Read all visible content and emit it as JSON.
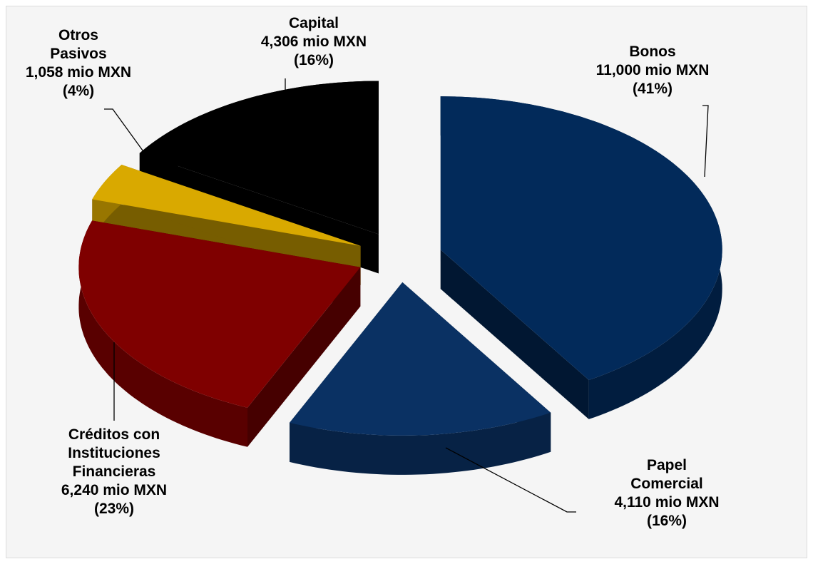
{
  "chart_data": {
    "type": "pie",
    "categories": [
      "Bonos",
      "Papel Comercial",
      "Créditos con Instituciones Financieras",
      "Otros Pasivos",
      "Capital"
    ],
    "values": [
      11000,
      4110,
      6240,
      1058,
      4306
    ],
    "value_labels": [
      "11,000 mio MXN",
      "4,110 mio MXN",
      "6,240 mio MXN",
      "1,058 mio MXN",
      "4,306 mio MXN"
    ],
    "percentages": [
      41,
      16,
      23,
      4,
      16
    ],
    "percent_labels": [
      "(41%)",
      "(16%)",
      "(23%)",
      "(4%)",
      "(16%)"
    ],
    "colors": [
      "#022a5a",
      "#0a3163",
      "#7f0000",
      "#d9a900",
      "#000000"
    ]
  }
}
